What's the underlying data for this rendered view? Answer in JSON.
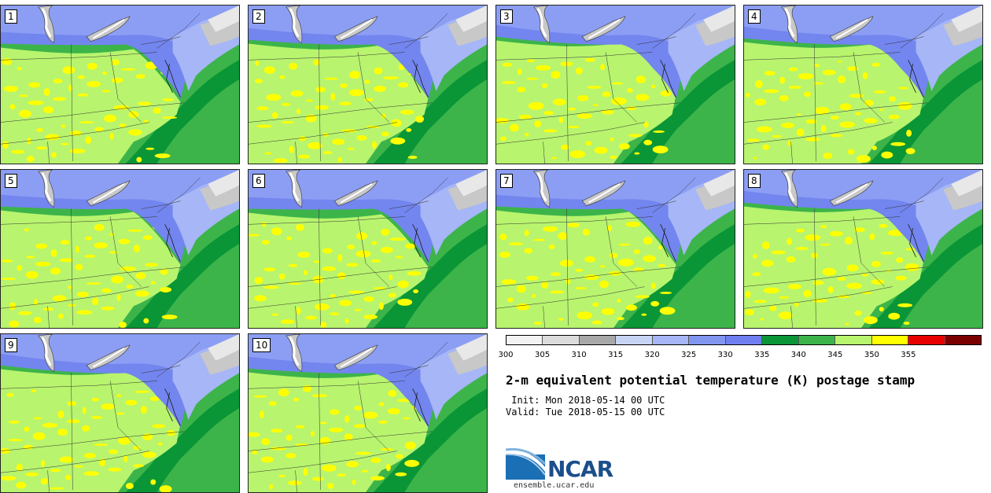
{
  "panels": [
    "1",
    "2",
    "3",
    "4",
    "5",
    "6",
    "7",
    "8",
    "9",
    "10"
  ],
  "colorbar": {
    "ticks": [
      "300",
      "305",
      "310",
      "315",
      "320",
      "325",
      "330",
      "335",
      "340",
      "345",
      "350",
      "355"
    ],
    "colors": [
      "#f2f2f2",
      "#dcdcdc",
      "#a8a8a8",
      "#c8d4f4",
      "#a6b6f6",
      "#8296f0",
      "#6f7ff0",
      "#0a9636",
      "#3cb44a",
      "#b8f46e",
      "#ffff00",
      "#e80000",
      "#7a0000"
    ]
  },
  "title": "2-m equivalent potential temperature (K) postage stamp",
  "init": " Init: Mon 2018-05-14 00 UTC",
  "valid": "Valid: Tue 2018-05-15 00 UTC",
  "logo": {
    "name": "NCAR",
    "url": "ensemble.ucar.edu"
  }
}
